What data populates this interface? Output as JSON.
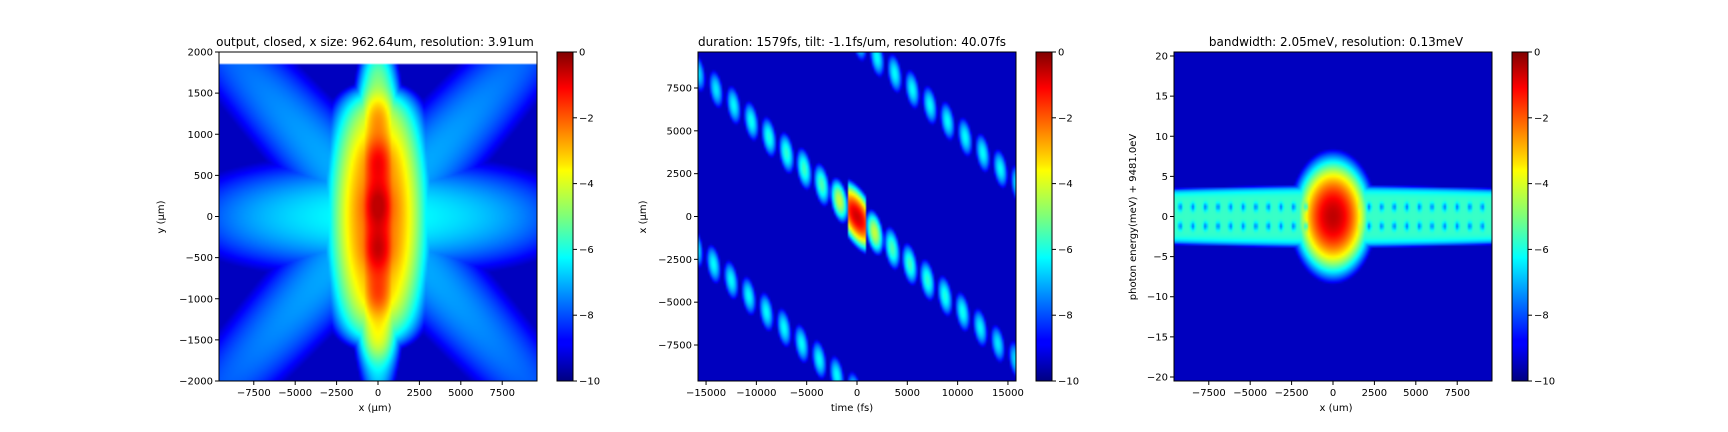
{
  "chart_data": [
    {
      "type": "heatmap",
      "title": "output, closed, x size: 962.64um, resolution: 3.91um",
      "xlabel": "x (μm)",
      "ylabel": "y (μm)",
      "xlim": [
        -9600,
        9600
      ],
      "ylim": [
        -2000,
        2000
      ],
      "xticks": [
        -7500,
        -5000,
        -2500,
        0,
        2500,
        5000,
        7500
      ],
      "xtick_labels": [
        "−7500",
        "−5000",
        "−2500",
        "0",
        "2500",
        "5000",
        "7500"
      ],
      "yticks": [
        -2000,
        -1500,
        -1000,
        -500,
        0,
        500,
        1000,
        1500,
        2000
      ],
      "ytick_labels": [
        "−2000",
        "−1500",
        "−1000",
        "−500",
        "0",
        "500",
        "1000",
        "1500",
        "2000"
      ],
      "data_top": 1870,
      "colorbar": {
        "min": -10,
        "max": 0,
        "ticks": [
          0,
          -2,
          -4,
          -6,
          -8,
          -10
        ],
        "tick_labels": [
          "0",
          "−2",
          "−4",
          "−6",
          "−8",
          "−10"
        ],
        "colormap": "jet"
      },
      "pattern": "cross"
    },
    {
      "type": "heatmap",
      "title": "duration: 1579fs, tilt: -1.1fs/um, resolution: 40.07fs",
      "xlabel": "time (fs)",
      "ylabel": "x (μm)",
      "xlim": [
        -15800,
        15800
      ],
      "ylim": [
        -9600,
        9600
      ],
      "xticks": [
        -15000,
        -10000,
        -5000,
        0,
        5000,
        10000,
        15000
      ],
      "xtick_labels": [
        "−15000",
        "−10000",
        "−5000",
        "0",
        "5000",
        "10000",
        "15000"
      ],
      "yticks": [
        -7500,
        -5000,
        -2500,
        0,
        2500,
        5000,
        7500
      ],
      "ytick_labels": [
        "−7500",
        "−5000",
        "−2500",
        "0",
        "2500",
        "5000",
        "7500"
      ],
      "colorbar": {
        "min": -10,
        "max": 0,
        "ticks": [
          0,
          -2,
          -4,
          -6,
          -8,
          -10
        ],
        "tick_labels": [
          "0",
          "−2",
          "−4",
          "−6",
          "−8",
          "−10"
        ],
        "colormap": "jet"
      },
      "pattern": "tilted-pulse-train"
    },
    {
      "type": "heatmap",
      "title": "bandwidth: 2.05meV, resolution: 0.13meV",
      "xlabel": "x (um)",
      "ylabel": "photon energy(meV) + 9481.0eV",
      "xlim": [
        -9600,
        9600
      ],
      "ylim": [
        -20.5,
        20.5
      ],
      "xticks": [
        -7500,
        -5000,
        -2500,
        0,
        2500,
        5000,
        7500
      ],
      "xtick_labels": [
        "−7500",
        "−5000",
        "−2500",
        "0",
        "2500",
        "5000",
        "7500"
      ],
      "yticks": [
        -20,
        -15,
        -10,
        -5,
        0,
        5,
        10,
        15,
        20
      ],
      "ytick_labels": [
        "−20",
        "−15",
        "−10",
        "−5",
        "0",
        "5",
        "10",
        "15",
        "20"
      ],
      "colorbar": {
        "min": -10,
        "max": 0,
        "ticks": [
          0,
          -2,
          -4,
          -6,
          -8,
          -10
        ],
        "tick_labels": [
          "0",
          "−2",
          "−4",
          "−6",
          "−8",
          "−10"
        ],
        "colormap": "jet"
      },
      "pattern": "spectral-band"
    }
  ]
}
